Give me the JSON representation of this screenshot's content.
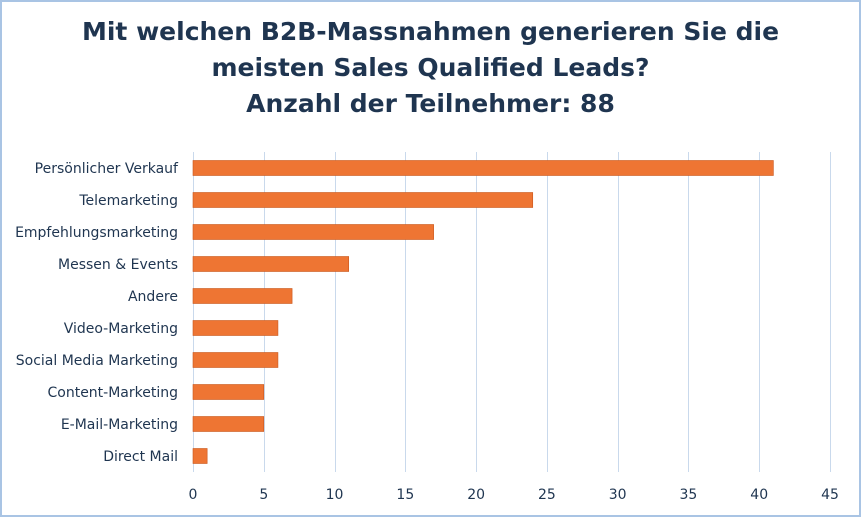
{
  "chart_data": {
    "type": "bar",
    "orientation": "horizontal",
    "title_lines": [
      "Mit welchen B2B-Massnahmen generieren Sie die",
      "meisten Sales Qualified Leads?",
      "Anzahl der Teilnehmer: 88"
    ],
    "categories": [
      "Persönlicher Verkauf",
      "Telemarketing",
      "Empfehlungsmarketing",
      "Messen & Events",
      "Andere",
      "Video-Marketing",
      "Social Media Marketing",
      "Content-Marketing",
      "E-Mail-Marketing",
      "Direct Mail"
    ],
    "values": [
      41,
      24,
      17,
      11,
      7,
      6,
      6,
      5,
      5,
      1
    ],
    "xlim": [
      0,
      45
    ],
    "xticks": [
      "0",
      "5",
      "10",
      "15",
      "20",
      "25",
      "30",
      "35",
      "40",
      "45"
    ],
    "grid": true,
    "legend": "none",
    "colors": {
      "bar_fill": "#ee7533",
      "bar_edge": "#c9561c",
      "gridline": "#c9d9ec",
      "text": "#1f3550",
      "border": "#a9c4e4"
    }
  }
}
